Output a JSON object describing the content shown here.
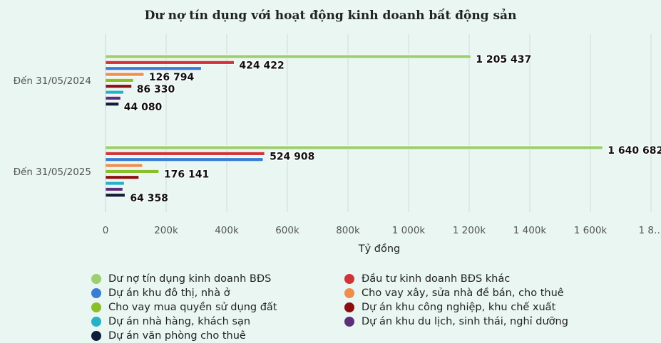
{
  "chart_data": {
    "type": "bar",
    "orientation": "horizontal",
    "title": "Dư nợ tín dụng với hoạt động kinh doanh bất động sản",
    "xlabel": "Tỷ đồng",
    "ylabel": "",
    "xlim": [
      0,
      1800000
    ],
    "x_ticks": [
      0,
      200000,
      400000,
      600000,
      800000,
      1000000,
      1200000,
      1400000,
      1600000,
      1800000
    ],
    "x_tick_labels": [
      "0",
      "200k",
      "400k",
      "600k",
      "800k",
      "1 000k",
      "1 200k",
      "1 400k",
      "1 600k",
      "1 8…"
    ],
    "categories": [
      "Đến 31/05/2024",
      "Đến 31/05/2025"
    ],
    "grid": "vertical",
    "legend_position": "bottom",
    "series": [
      {
        "name": "Dư nợ tín dụng kinh doanh BĐS",
        "color": "#9ccf6f",
        "values": [
          1205437,
          1640682
        ],
        "labels": [
          "1 205 437",
          "1 640 682"
        ]
      },
      {
        "name": "Đầu tư kinh doanh BĐS khác",
        "color": "#d13438",
        "values": [
          424422,
          524908
        ],
        "labels": [
          "424 422",
          "524 908"
        ]
      },
      {
        "name": "Dự án khu đô thị, nhà ở",
        "color": "#3a7dd4",
        "values": [
          316000,
          520000
        ],
        "labels": [
          "",
          ""
        ]
      },
      {
        "name": "Cho vay xây, sửa nhà đề bán, cho thuê",
        "color": "#f08c4c",
        "values": [
          126794,
          122000
        ],
        "labels": [
          "126 794",
          ""
        ]
      },
      {
        "name": "Cho vay mua quyền sử dụng đất",
        "color": "#8bbf2a",
        "values": [
          92000,
          176141
        ],
        "labels": [
          "",
          "176 141"
        ]
      },
      {
        "name": "Dự án khu công nghiệp, khu chế xuất",
        "color": "#8b0f10",
        "values": [
          86330,
          110000
        ],
        "labels": [
          "86 330",
          ""
        ]
      },
      {
        "name": "Dự án nhà hàng, khách sạn",
        "color": "#25b2c8",
        "values": [
          60000,
          62000
        ],
        "labels": [
          "",
          ""
        ]
      },
      {
        "name": "Dự án khu du lịch, sinh thái, nghỉ dưỡng",
        "color": "#5b2f7a",
        "values": [
          50000,
          57000
        ],
        "labels": [
          "",
          ""
        ]
      },
      {
        "name": "Dự án văn phòng cho thuê",
        "color": "#0f1e38",
        "values": [
          44080,
          64358
        ],
        "labels": [
          "44 080",
          "64 358"
        ]
      }
    ]
  }
}
